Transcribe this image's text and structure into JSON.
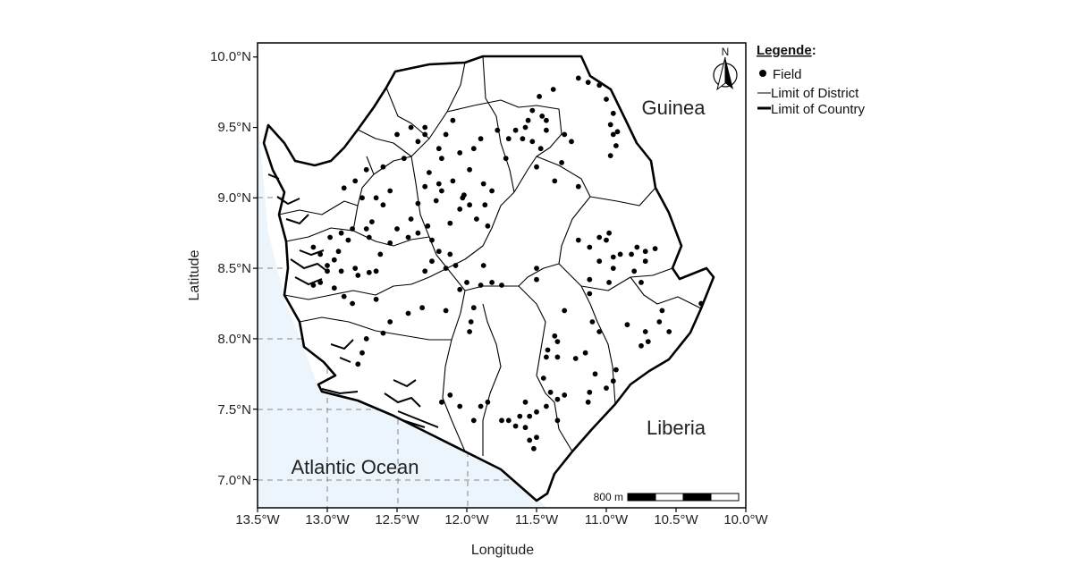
{
  "map": {
    "xlabel": "Longitude",
    "ylabel": "Latitude",
    "x_ticks": [
      "13.5°W",
      "13.0°W",
      "12.5°W",
      "12.0°W",
      "11.5°W",
      "11.0°W",
      "10.5°W",
      "10.0°W"
    ],
    "y_ticks": [
      "10.0°N",
      "9.5°N",
      "9.0°N",
      "8.5°N",
      "8.0°N",
      "7.5°N",
      "7.0°N"
    ],
    "lon_range": [
      -13.5,
      -10.0
    ],
    "lat_range": [
      6.8,
      10.1
    ],
    "places": {
      "guinea": "Guinea",
      "liberia": "Liberia",
      "ocean": "Atlantic Ocean"
    },
    "north_label": "N",
    "scale_label": "800 m",
    "legend": {
      "title": "Legende",
      "title_suffix": ":",
      "field": "Field",
      "district": "Limit of District",
      "country": "Limit of Country"
    },
    "colors": {
      "ocean": "#edf5fc",
      "land": "#ffffff",
      "border": "#000000",
      "grid": "#888888"
    },
    "fields": [
      [
        -11.2,
        9.85
      ],
      [
        -11.13,
        9.82
      ],
      [
        -11.05,
        9.8
      ],
      [
        -11.38,
        9.77
      ],
      [
        -11.0,
        9.7
      ],
      [
        -10.95,
        9.6
      ],
      [
        -10.97,
        9.52
      ],
      [
        -10.92,
        9.47
      ],
      [
        -10.93,
        9.37
      ],
      [
        -10.97,
        9.3
      ],
      [
        -10.95,
        9.45
      ],
      [
        -11.48,
        9.72
      ],
      [
        -11.53,
        9.62
      ],
      [
        -11.46,
        9.58
      ],
      [
        -11.58,
        9.5
      ],
      [
        -11.65,
        9.48
      ],
      [
        -11.6,
        9.42
      ],
      [
        -11.53,
        9.4
      ],
      [
        -11.47,
        9.35
      ],
      [
        -11.43,
        9.48
      ],
      [
        -11.3,
        9.45
      ],
      [
        -11.25,
        9.4
      ],
      [
        -11.32,
        9.25
      ],
      [
        -11.37,
        9.12
      ],
      [
        -11.2,
        9.08
      ],
      [
        -11.5,
        9.22
      ],
      [
        -11.43,
        9.55
      ],
      [
        -11.56,
        9.55
      ],
      [
        -11.7,
        9.42
      ],
      [
        -11.72,
        9.28
      ],
      [
        -11.78,
        9.48
      ],
      [
        -11.9,
        9.42
      ],
      [
        -11.95,
        9.35
      ],
      [
        -12.05,
        9.32
      ],
      [
        -11.98,
        9.2
      ],
      [
        -12.1,
        9.12
      ],
      [
        -12.03,
        9.0
      ],
      [
        -11.88,
        9.1
      ],
      [
        -11.82,
        9.05
      ],
      [
        -11.87,
        8.95
      ],
      [
        -11.93,
        8.85
      ],
      [
        -11.85,
        8.8
      ],
      [
        -11.98,
        8.95
      ],
      [
        -12.12,
        8.82
      ],
      [
        -12.18,
        9.05
      ],
      [
        -12.2,
        9.1
      ],
      [
        -12.27,
        9.18
      ],
      [
        -12.3,
        9.08
      ],
      [
        -12.22,
        8.98
      ],
      [
        -12.35,
        8.96
      ],
      [
        -12.4,
        8.85
      ],
      [
        -12.28,
        8.8
      ],
      [
        -12.35,
        8.75
      ],
      [
        -12.25,
        8.7
      ],
      [
        -12.2,
        8.62
      ],
      [
        -12.12,
        8.6
      ],
      [
        -12.08,
        8.52
      ],
      [
        -12.15,
        8.5
      ],
      [
        -12.25,
        8.55
      ],
      [
        -12.3,
        8.48
      ],
      [
        -12.42,
        8.72
      ],
      [
        -12.5,
        8.78
      ],
      [
        -12.55,
        8.68
      ],
      [
        -12.62,
        8.6
      ],
      [
        -12.7,
        8.72
      ],
      [
        -12.72,
        8.78
      ],
      [
        -12.68,
        8.83
      ],
      [
        -12.82,
        8.78
      ],
      [
        -12.85,
        8.7
      ],
      [
        -12.9,
        8.75
      ],
      [
        -12.98,
        8.72
      ],
      [
        -12.92,
        8.62
      ],
      [
        -12.95,
        8.56
      ],
      [
        -12.8,
        8.5
      ],
      [
        -12.78,
        8.45
      ],
      [
        -12.7,
        8.47
      ],
      [
        -12.65,
        8.48
      ],
      [
        -12.9,
        8.48
      ],
      [
        -13.0,
        8.48
      ],
      [
        -13.05,
        8.6
      ],
      [
        -13.1,
        8.65
      ],
      [
        -13.0,
        8.52
      ],
      [
        -12.6,
        8.95
      ],
      [
        -12.65,
        9.0
      ],
      [
        -12.75,
        9.0
      ],
      [
        -12.55,
        9.05
      ],
      [
        -12.6,
        9.22
      ],
      [
        -12.72,
        9.2
      ],
      [
        -12.8,
        9.12
      ],
      [
        -12.88,
        9.07
      ],
      [
        -12.45,
        9.28
      ],
      [
        -12.35,
        9.4
      ],
      [
        -12.3,
        9.45
      ],
      [
        -12.15,
        9.45
      ],
      [
        -12.18,
        9.28
      ],
      [
        -12.1,
        9.55
      ],
      [
        -12.3,
        9.5
      ],
      [
        -12.4,
        9.5
      ],
      [
        -12.5,
        9.45
      ],
      [
        -12.2,
        9.35
      ],
      [
        -12.02,
        9.02
      ],
      [
        -12.05,
        8.92
      ],
      [
        -11.88,
        8.52
      ],
      [
        -11.82,
        8.4
      ],
      [
        -11.75,
        8.38
      ],
      [
        -11.9,
        8.38
      ],
      [
        -12.0,
        8.4
      ],
      [
        -11.95,
        8.22
      ],
      [
        -11.97,
        8.12
      ],
      [
        -11.98,
        8.05
      ],
      [
        -12.05,
        8.35
      ],
      [
        -12.15,
        8.2
      ],
      [
        -12.32,
        8.22
      ],
      [
        -12.42,
        8.18
      ],
      [
        -12.55,
        8.12
      ],
      [
        -12.6,
        8.04
      ],
      [
        -12.72,
        8.0
      ],
      [
        -12.75,
        7.9
      ],
      [
        -12.78,
        7.82
      ],
      [
        -12.88,
        8.3
      ],
      [
        -12.82,
        8.25
      ],
      [
        -12.65,
        8.28
      ],
      [
        -13.05,
        8.4
      ],
      [
        -13.1,
        8.38
      ],
      [
        -12.95,
        8.36
      ],
      [
        -11.5,
        8.5
      ],
      [
        -11.5,
        8.42
      ],
      [
        -11.3,
        8.2
      ],
      [
        -11.35,
        7.98
      ],
      [
        -11.42,
        7.92
      ],
      [
        -11.43,
        7.87
      ],
      [
        -11.35,
        7.87
      ],
      [
        -11.37,
        8.02
      ],
      [
        -11.12,
        8.32
      ],
      [
        -11.1,
        8.12
      ],
      [
        -11.15,
        7.9
      ],
      [
        -11.22,
        7.86
      ],
      [
        -11.05,
        8.05
      ],
      [
        -11.08,
        7.75
      ],
      [
        -11.12,
        7.62
      ],
      [
        -11.13,
        7.55
      ],
      [
        -11.0,
        7.65
      ],
      [
        -10.95,
        7.7
      ],
      [
        -10.93,
        7.78
      ],
      [
        -10.85,
        8.1
      ],
      [
        -10.72,
        8.05
      ],
      [
        -10.7,
        7.98
      ],
      [
        -10.75,
        7.95
      ],
      [
        -10.6,
        8.2
      ],
      [
        -10.62,
        8.12
      ],
      [
        -10.55,
        8.05
      ],
      [
        -10.32,
        8.25
      ],
      [
        -11.4,
        7.62
      ],
      [
        -11.43,
        7.52
      ],
      [
        -11.5,
        7.48
      ],
      [
        -11.55,
        7.45
      ],
      [
        -11.62,
        7.45
      ],
      [
        -11.7,
        7.42
      ],
      [
        -11.75,
        7.42
      ],
      [
        -11.65,
        7.38
      ],
      [
        -11.85,
        7.55
      ],
      [
        -11.9,
        7.52
      ],
      [
        -11.95,
        7.42
      ],
      [
        -12.05,
        7.52
      ],
      [
        -12.12,
        7.6
      ],
      [
        -12.18,
        7.55
      ],
      [
        -11.58,
        7.37
      ],
      [
        -11.55,
        7.28
      ],
      [
        -11.52,
        7.22
      ],
      [
        -11.5,
        7.3
      ],
      [
        -11.58,
        7.55
      ],
      [
        -11.35,
        7.42
      ],
      [
        -11.3,
        7.6
      ],
      [
        -11.45,
        7.72
      ],
      [
        -11.35,
        7.57
      ],
      [
        -11.12,
        8.42
      ],
      [
        -11.05,
        8.55
      ],
      [
        -10.95,
        8.58
      ],
      [
        -11.0,
        8.7
      ],
      [
        -10.9,
        8.6
      ],
      [
        -10.82,
        8.6
      ],
      [
        -10.78,
        8.65
      ],
      [
        -10.72,
        8.62
      ],
      [
        -10.65,
        8.64
      ],
      [
        -10.72,
        8.55
      ],
      [
        -10.8,
        8.48
      ],
      [
        -10.75,
        8.4
      ],
      [
        -11.12,
        8.65
      ],
      [
        -11.05,
        8.72
      ],
      [
        -11.2,
        8.7
      ],
      [
        -10.98,
        8.75
      ],
      [
        -10.95,
        8.5
      ],
      [
        -10.98,
        8.4
      ]
    ]
  }
}
